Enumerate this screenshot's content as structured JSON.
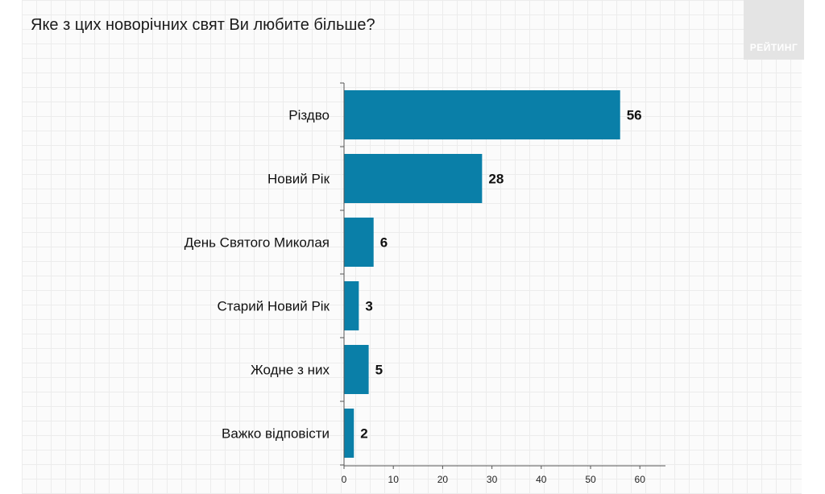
{
  "title": "Яке з цих новорічних свят Ви любите більше?",
  "logo_text": "РЕЙТИНГ",
  "colors": {
    "bar": "#0a7fa8",
    "axis": "#555555"
  },
  "chart_data": {
    "type": "bar",
    "orientation": "horizontal",
    "title": "Яке з цих новорічних свят Ви любите більше?",
    "categories": [
      "Різдво",
      "Новий Рік",
      "День Святого Миколая",
      "Старий Новий Рік",
      "Жодне з них",
      "Важко відповісти"
    ],
    "values": [
      56,
      28,
      6,
      3,
      5,
      2
    ],
    "xlim": [
      0,
      65
    ],
    "ticks": [
      0,
      10,
      20,
      30,
      40,
      50,
      60
    ],
    "grid": true,
    "legend": "none"
  }
}
